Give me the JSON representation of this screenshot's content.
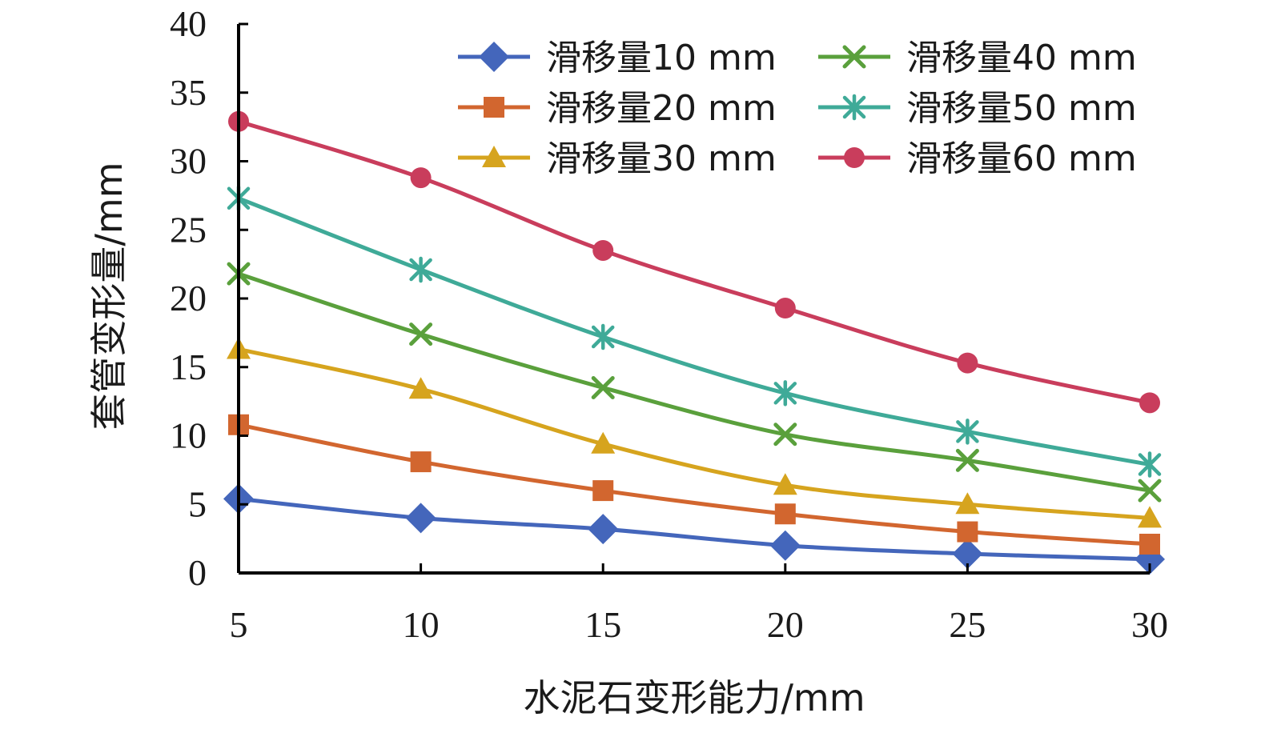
{
  "chart_data": {
    "type": "line",
    "xlabel": "水泥石变形能力/mm",
    "ylabel": "套管变形量/mm",
    "x": [
      5,
      10,
      15,
      20,
      25,
      30
    ],
    "xlim": [
      5,
      30
    ],
    "ylim": [
      0,
      40
    ],
    "x_ticks": [
      "5",
      "10",
      "15",
      "20",
      "25",
      "30"
    ],
    "y_ticks": [
      "0",
      "5",
      "10",
      "15",
      "20",
      "25",
      "30",
      "35",
      "40"
    ],
    "grid": false,
    "legend_position": "top-right",
    "series": [
      {
        "name": "滑移量10 mm",
        "color": "#4466bb",
        "marker": "diamond",
        "values": [
          5.4,
          4.0,
          3.2,
          2.0,
          1.4,
          1.0
        ]
      },
      {
        "name": "滑移量20 mm",
        "color": "#d2662f",
        "marker": "square",
        "values": [
          10.8,
          8.1,
          6.0,
          4.3,
          3.0,
          2.1
        ]
      },
      {
        "name": "滑移量30 mm",
        "color": "#d6a41e",
        "marker": "triangle",
        "values": [
          16.3,
          13.4,
          9.4,
          6.4,
          5.0,
          4.0
        ]
      },
      {
        "name": "滑移量40 mm",
        "color": "#5aa03c",
        "marker": "x",
        "values": [
          21.8,
          17.4,
          13.5,
          10.1,
          8.2,
          6.0
        ]
      },
      {
        "name": "滑移量50 mm",
        "color": "#3faa98",
        "marker": "star",
        "values": [
          27.3,
          22.1,
          17.2,
          13.1,
          10.3,
          7.9
        ]
      },
      {
        "name": "滑移量60 mm",
        "color": "#c93d5c",
        "marker": "circle",
        "values": [
          32.9,
          28.8,
          23.5,
          19.3,
          15.3,
          12.4
        ]
      }
    ]
  }
}
